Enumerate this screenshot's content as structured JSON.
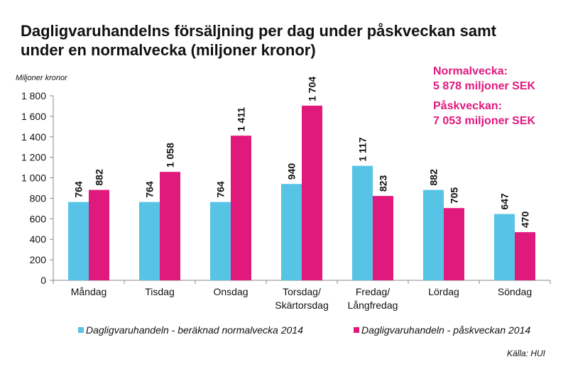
{
  "chart_data": {
    "type": "bar",
    "title": "Dagligvaruhandelns försäljning per dag under påskveckan samt under en normalvecka (miljoner kronor)",
    "title_lines": [
      "Dagligvaruhandelns försäljning per dag under påskveckan samt",
      "under en normalvecka (miljoner kronor)"
    ],
    "ylabel": "Miljoner kronor",
    "xlabel": "",
    "ylim": [
      0,
      1800
    ],
    "yticks": [
      0,
      200,
      400,
      600,
      800,
      1000,
      1200,
      1400,
      1600,
      1800
    ],
    "ytick_labels": [
      "0",
      "200",
      "400",
      "600",
      "800",
      "1 000",
      "1 200",
      "1 400",
      "1 600",
      "1 800"
    ],
    "categories": [
      [
        "Måndag"
      ],
      [
        "Tisdag"
      ],
      [
        "Onsdag"
      ],
      [
        "Torsdag/",
        "Skärtorsdag"
      ],
      [
        "Fredag/",
        "Långfredag"
      ],
      [
        "Lördag"
      ],
      [
        "Söndag"
      ]
    ],
    "series": [
      {
        "name": "Dagligvaruhandeln - beräknad normalvecka 2014",
        "color": "#57c4e6",
        "values": [
          764,
          764,
          764,
          940,
          1117,
          882,
          647
        ],
        "labels": [
          "764",
          "764",
          "764",
          "940",
          "1 117",
          "882",
          "647"
        ]
      },
      {
        "name": "Dagligvaruhandeln - påskveckan 2014",
        "color": "#e0197d",
        "values": [
          882,
          1058,
          1411,
          1704,
          823,
          705,
          470
        ],
        "labels": [
          "882",
          "1 058",
          "1 411",
          "1 704",
          "823",
          "705",
          "470"
        ]
      }
    ],
    "grid": false,
    "legend": "bottom",
    "annotations": [
      {
        "line1": "Normalvecka:",
        "line2": "5 878 miljoner SEK"
      },
      {
        "line1": "Påskveckan:",
        "line2": "7 053 miljoner SEK"
      }
    ],
    "source": "Källa: HUI"
  }
}
